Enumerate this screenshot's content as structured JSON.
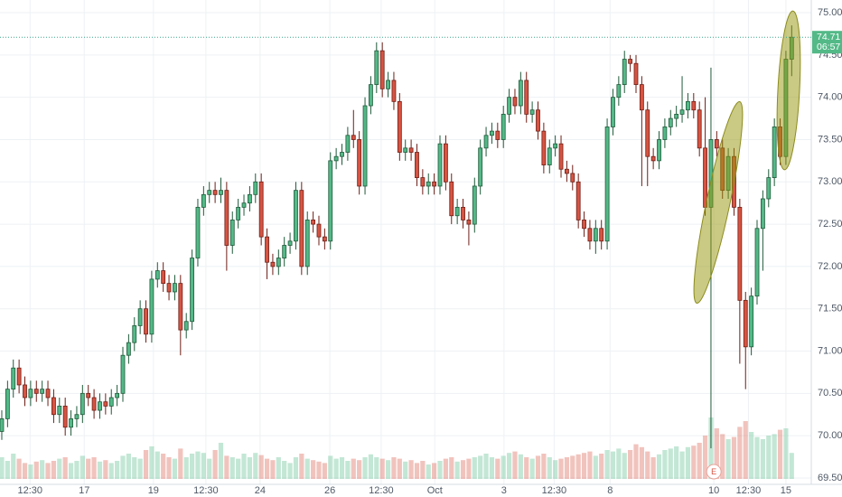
{
  "chart_data": {
    "type": "candlestick",
    "open": [
      70.05,
      70.2,
      70.55,
      70.8,
      70.6,
      70.45,
      70.55,
      70.5,
      70.55,
      70.45,
      70.25,
      70.35,
      70.1,
      70.2,
      70.25,
      70.5,
      70.45,
      70.3,
      70.4,
      70.35,
      70.45,
      70.5,
      70.95,
      71.1,
      71.3,
      71.5,
      71.2,
      71.85,
      71.95,
      71.8,
      71.7,
      71.8,
      71.25,
      71.35,
      72.1,
      72.7,
      72.85,
      72.9,
      72.85,
      72.9,
      72.25,
      72.55,
      72.7,
      72.75,
      72.85,
      73.0,
      72.35,
      72.05,
      72.0,
      72.1,
      72.25,
      72.3,
      72.9,
      72.0,
      72.55,
      72.5,
      72.35,
      72.3,
      73.25,
      73.3,
      73.35,
      73.55,
      73.5,
      72.95,
      73.9,
      74.15,
      74.55,
      74.1,
      74.2,
      73.95,
      73.35,
      73.4,
      73.35,
      73.05,
      72.95,
      73.0,
      72.95,
      73.45,
      73.0,
      72.6,
      72.7,
      72.55,
      72.5,
      72.95,
      73.4,
      73.55,
      73.6,
      73.5,
      73.8,
      74.0,
      73.9,
      74.2,
      73.8,
      73.85,
      73.6,
      73.2,
      73.4,
      73.45,
      73.15,
      73.1,
      73.0,
      72.55,
      72.45,
      72.3,
      72.45,
      72.3,
      73.65,
      74.0,
      74.15,
      74.45,
      74.4,
      74.15,
      73.85,
      73.3,
      73.25,
      73.5,
      73.65,
      73.75,
      73.8,
      73.85,
      73.95,
      73.85,
      73.4,
      72.7,
      73.5,
      73.4,
      72.9,
      73.3,
      72.7,
      71.6,
      71.05,
      71.65,
      72.45,
      72.8,
      73.05,
      73.65,
      73.3,
      74.45
    ],
    "high": [
      70.3,
      70.65,
      70.9,
      70.9,
      70.7,
      70.65,
      70.65,
      70.65,
      70.65,
      70.55,
      70.45,
      70.45,
      70.3,
      70.35,
      70.6,
      70.6,
      70.55,
      70.5,
      70.5,
      70.55,
      70.6,
      71.05,
      71.2,
      71.4,
      71.6,
      71.6,
      71.95,
      72.05,
      72.05,
      71.9,
      71.9,
      71.9,
      71.45,
      72.2,
      72.8,
      72.95,
      73.0,
      73.0,
      73.05,
      73.0,
      72.65,
      72.8,
      72.85,
      72.95,
      73.1,
      73.1,
      72.45,
      72.15,
      72.2,
      72.35,
      72.4,
      73.0,
      73.0,
      72.65,
      72.65,
      72.6,
      72.45,
      73.35,
      73.4,
      73.45,
      73.65,
      73.85,
      73.6,
      74.0,
      74.25,
      74.65,
      74.65,
      74.3,
      74.3,
      74.05,
      73.5,
      73.5,
      73.45,
      73.15,
      73.1,
      73.1,
      73.55,
      73.55,
      73.1,
      72.8,
      72.8,
      72.65,
      73.05,
      73.5,
      73.65,
      73.7,
      73.7,
      73.9,
      74.1,
      74.1,
      74.3,
      74.3,
      73.95,
      73.95,
      73.7,
      73.5,
      73.55,
      73.55,
      73.25,
      73.2,
      73.1,
      72.65,
      72.55,
      72.55,
      72.55,
      73.75,
      74.1,
      74.25,
      74.55,
      74.5,
      74.5,
      74.25,
      73.95,
      73.4,
      73.6,
      73.75,
      73.85,
      73.9,
      74.25,
      74.05,
      74.05,
      73.95,
      74.0,
      74.35,
      73.6,
      73.5,
      73.4,
      73.4,
      72.8,
      71.7,
      71.75,
      72.55,
      72.9,
      73.15,
      73.75,
      73.75,
      74.55,
      74.85
    ],
    "low": [
      69.95,
      70.1,
      70.45,
      70.5,
      70.35,
      70.35,
      70.4,
      70.4,
      70.35,
      70.15,
      70.15,
      70.0,
      70.0,
      70.1,
      70.15,
      70.35,
      70.2,
      70.2,
      70.25,
      70.25,
      70.35,
      70.4,
      70.85,
      71.0,
      71.2,
      71.1,
      71.1,
      71.75,
      71.7,
      71.6,
      71.6,
      70.95,
      71.15,
      71.25,
      72.0,
      72.6,
      72.75,
      72.75,
      72.75,
      71.95,
      72.15,
      72.45,
      72.6,
      72.65,
      72.75,
      72.25,
      71.85,
      71.9,
      71.9,
      72.0,
      72.15,
      72.2,
      71.9,
      71.9,
      72.4,
      72.25,
      72.2,
      72.2,
      73.15,
      73.2,
      73.25,
      73.4,
      72.85,
      72.85,
      73.8,
      74.05,
      74.0,
      74.0,
      73.85,
      73.25,
      73.25,
      73.25,
      72.95,
      72.85,
      72.85,
      72.85,
      72.85,
      72.9,
      72.5,
      72.5,
      72.45,
      72.25,
      72.4,
      72.85,
      73.3,
      73.45,
      73.4,
      73.4,
      73.7,
      73.8,
      73.8,
      73.7,
      73.7,
      73.5,
      73.1,
      73.1,
      73.3,
      73.05,
      73.0,
      72.9,
      72.45,
      72.35,
      72.2,
      72.15,
      72.2,
      72.2,
      73.55,
      73.9,
      74.05,
      74.3,
      74.05,
      72.95,
      72.95,
      73.15,
      73.15,
      73.4,
      73.55,
      73.65,
      73.7,
      73.75,
      73.75,
      73.3,
      72.6,
      69.85,
      73.3,
      72.8,
      72.8,
      72.6,
      70.85,
      70.55,
      70.95,
      71.55,
      71.95,
      72.7,
      72.95,
      73.2,
      73.2,
      74.25
    ],
    "close": [
      70.2,
      70.55,
      70.8,
      70.6,
      70.45,
      70.55,
      70.5,
      70.55,
      70.45,
      70.25,
      70.35,
      70.1,
      70.2,
      70.25,
      70.5,
      70.45,
      70.3,
      70.4,
      70.35,
      70.45,
      70.5,
      70.95,
      71.1,
      71.3,
      71.5,
      71.2,
      71.85,
      71.95,
      71.8,
      71.7,
      71.8,
      71.25,
      71.35,
      72.1,
      72.7,
      72.85,
      72.9,
      72.85,
      72.9,
      72.25,
      72.55,
      72.7,
      72.75,
      72.85,
      73.0,
      72.35,
      72.05,
      72.0,
      72.1,
      72.25,
      72.3,
      72.9,
      72.0,
      72.55,
      72.5,
      72.35,
      72.3,
      73.25,
      73.3,
      73.35,
      73.55,
      73.5,
      72.95,
      73.9,
      74.15,
      74.55,
      74.1,
      74.2,
      73.95,
      73.35,
      73.4,
      73.35,
      73.05,
      72.95,
      73.0,
      72.95,
      73.45,
      73.0,
      72.6,
      72.7,
      72.55,
      72.5,
      72.95,
      73.4,
      73.55,
      73.6,
      73.5,
      73.8,
      74.0,
      73.9,
      74.2,
      73.8,
      73.85,
      73.6,
      73.2,
      73.4,
      73.45,
      73.15,
      73.1,
      73.0,
      72.55,
      72.45,
      72.3,
      72.45,
      72.3,
      73.65,
      74.0,
      74.15,
      74.45,
      74.4,
      74.15,
      73.85,
      73.3,
      73.25,
      73.5,
      73.65,
      73.75,
      73.8,
      73.85,
      73.95,
      73.85,
      73.4,
      72.7,
      73.5,
      73.4,
      72.9,
      73.3,
      72.7,
      71.6,
      71.05,
      71.65,
      72.45,
      72.8,
      73.05,
      73.65,
      73.3,
      74.45,
      74.71
    ],
    "volume": [
      30,
      25,
      35,
      28,
      22,
      20,
      24,
      26,
      22,
      25,
      28,
      30,
      22,
      25,
      32,
      28,
      30,
      24,
      26,
      22,
      25,
      32,
      35,
      30,
      28,
      40,
      45,
      38,
      35,
      30,
      28,
      42,
      30,
      35,
      38,
      36,
      28,
      40,
      50,
      32,
      30,
      28,
      35,
      30,
      36,
      33,
      28,
      26,
      30,
      25,
      22,
      30,
      35,
      28,
      26,
      24,
      22,
      32,
      28,
      30,
      25,
      28,
      26,
      30,
      34,
      30,
      28,
      26,
      30,
      28,
      24,
      26,
      22,
      25,
      20,
      22,
      25,
      28,
      30,
      24,
      26,
      28,
      30,
      32,
      35,
      30,
      28,
      32,
      36,
      38,
      34,
      30,
      28,
      32,
      35,
      30,
      26,
      28,
      30,
      32,
      34,
      36,
      38,
      32,
      35,
      40,
      38,
      42,
      36,
      40,
      48,
      44,
      38,
      30,
      34,
      40,
      42,
      45,
      38,
      44,
      46,
      50,
      60,
      85,
      70,
      62,
      55,
      58,
      72,
      80,
      65,
      58,
      55,
      60,
      62,
      68,
      70,
      36
    ],
    "xlim": [
      -0.31,
      140.4
    ],
    "xticks": [
      {
        "value": 4.9,
        "label": "12:30"
      },
      {
        "value": 14.3,
        "label": "17"
      },
      {
        "value": 26.3,
        "label": "19"
      },
      {
        "value": 35.4,
        "label": "12:30"
      },
      {
        "value": 44.8,
        "label": "24"
      },
      {
        "value": 56.9,
        "label": "26"
      },
      {
        "value": 65.8,
        "label": "12:30"
      },
      {
        "value": 75.1,
        "label": "Oct"
      },
      {
        "value": 87.1,
        "label": "3"
      },
      {
        "value": 95.8,
        "label": "12:30"
      },
      {
        "value": 105.5,
        "label": "8"
      },
      {
        "value": 123.5,
        "label": "10"
      },
      {
        "value": 129.5,
        "label": "12:30"
      },
      {
        "value": 136,
        "label": "15"
      }
    ],
    "ylim": [
      69.43,
      75.15
    ],
    "yticks": [
      {
        "value": 69.5,
        "label": "69.50"
      },
      {
        "value": 70,
        "label": "70.00"
      },
      {
        "value": 70.5,
        "label": "70.50"
      },
      {
        "value": 71,
        "label": "71.00"
      },
      {
        "value": 71.5,
        "label": "71.50"
      },
      {
        "value": 72,
        "label": "72.00"
      },
      {
        "value": 72.5,
        "label": "72.50"
      },
      {
        "value": 73,
        "label": "73.00"
      },
      {
        "value": 73.5,
        "label": "73.50"
      },
      {
        "value": 74,
        "label": "74.00"
      },
      {
        "value": 74.5,
        "label": "74.50"
      },
      {
        "value": 75,
        "label": "75.00"
      }
    ],
    "last_price": 74.71,
    "countdown": "06:57",
    "event_marker": "E",
    "up_color": "#53b987",
    "down_color": "#d75442",
    "grid": true
  }
}
